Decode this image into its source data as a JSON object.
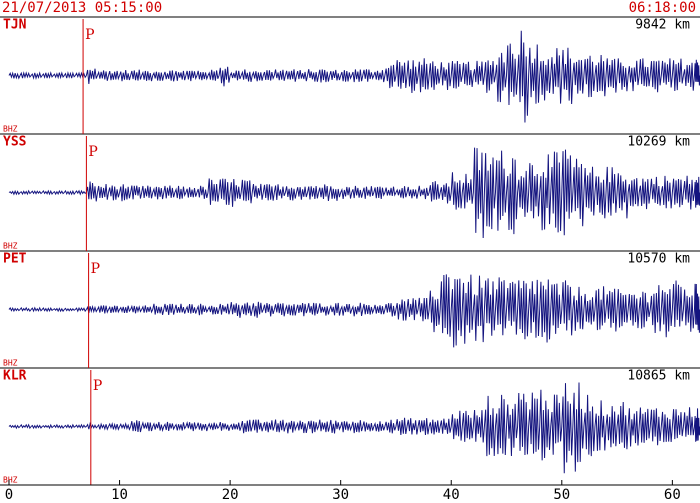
{
  "chart_data": {
    "type": "seismogram",
    "header_left": "21/07/2013 05:15:00",
    "header_right": "06:18:00",
    "x": [
      0,
      1,
      2,
      3,
      4,
      5,
      6,
      7,
      8,
      9,
      10,
      11,
      12,
      13,
      14,
      15,
      16,
      17,
      18,
      19,
      20,
      21,
      22,
      23,
      24,
      25,
      26,
      27,
      28,
      29,
      30,
      31,
      32,
      33,
      34,
      35,
      36,
      37,
      38,
      39,
      40,
      41,
      42,
      43,
      44,
      45,
      46,
      47,
      48,
      49,
      50,
      51,
      52,
      53,
      54,
      55,
      56,
      57,
      58,
      59,
      60,
      61,
      62
    ],
    "xlim": [
      0,
      62.5
    ],
    "xticks": [
      0,
      10,
      20,
      30,
      40,
      50,
      60
    ],
    "series": [
      {
        "name": "TJN",
        "distance": "9842 km",
        "component": "BHZ",
        "phase": "P",
        "p_arrival": 6.7,
        "color": "#14147f",
        "values": [
          0.05,
          0.05,
          0.05,
          0.05,
          0.05,
          0.05,
          0.05,
          0.15,
          0.1,
          0.1,
          0.1,
          0.1,
          0.1,
          0.1,
          0.1,
          0.1,
          0.1,
          0.1,
          0.1,
          0.2,
          0.1,
          0.11,
          0.1,
          0.11,
          0.12,
          0.11,
          0.1,
          0.11,
          0.12,
          0.1,
          0.11,
          0.12,
          0.12,
          0.12,
          0.25,
          0.3,
          0.3,
          0.3,
          0.3,
          0.25,
          0.25,
          0.25,
          0.25,
          0.3,
          0.5,
          0.7,
          0.85,
          0.6,
          0.5,
          0.5,
          0.5,
          0.4,
          0.4,
          0.4,
          0.3,
          0.3,
          0.3,
          0.3,
          0.3,
          0.3,
          0.3,
          0.3,
          0.3
        ]
      },
      {
        "name": "YSS",
        "distance": "10269 km",
        "component": "BHZ",
        "phase": "P",
        "p_arrival": 7.0,
        "color": "#14147f",
        "values": [
          0.03,
          0.03,
          0.03,
          0.03,
          0.03,
          0.03,
          0.03,
          0.2,
          0.15,
          0.15,
          0.15,
          0.12,
          0.12,
          0.12,
          0.12,
          0.12,
          0.12,
          0.12,
          0.25,
          0.25,
          0.25,
          0.25,
          0.15,
          0.15,
          0.15,
          0.15,
          0.15,
          0.15,
          0.15,
          0.15,
          0.12,
          0.12,
          0.12,
          0.12,
          0.12,
          0.12,
          0.12,
          0.12,
          0.2,
          0.2,
          0.35,
          0.35,
          0.8,
          0.75,
          0.75,
          0.75,
          0.6,
          0.6,
          0.7,
          0.7,
          0.85,
          0.6,
          0.45,
          0.45,
          0.45,
          0.45,
          0.3,
          0.3,
          0.3,
          0.3,
          0.3,
          0.3,
          0.3
        ]
      },
      {
        "name": "PET",
        "distance": "10570 km",
        "component": "BHZ",
        "phase": "P",
        "p_arrival": 7.2,
        "color": "#14147f",
        "values": [
          0.03,
          0.03,
          0.03,
          0.03,
          0.03,
          0.03,
          0.03,
          0.07,
          0.07,
          0.07,
          0.07,
          0.07,
          0.07,
          0.1,
          0.1,
          0.1,
          0.1,
          0.1,
          0.1,
          0.1,
          0.15,
          0.15,
          0.15,
          0.12,
          0.12,
          0.12,
          0.12,
          0.12,
          0.12,
          0.12,
          0.12,
          0.12,
          0.12,
          0.12,
          0.12,
          0.2,
          0.2,
          0.2,
          0.4,
          0.75,
          0.85,
          0.6,
          0.6,
          0.6,
          0.55,
          0.55,
          0.55,
          0.6,
          0.6,
          0.5,
          0.5,
          0.4,
          0.4,
          0.4,
          0.4,
          0.35,
          0.35,
          0.35,
          0.5,
          0.5,
          0.5,
          0.45,
          0.45
        ]
      },
      {
        "name": "KLR",
        "distance": "10865 km",
        "component": "BHZ",
        "phase": "P",
        "p_arrival": 7.4,
        "color": "#14147f",
        "values": [
          0.03,
          0.03,
          0.03,
          0.03,
          0.03,
          0.03,
          0.03,
          0.05,
          0.05,
          0.05,
          0.05,
          0.12,
          0.08,
          0.08,
          0.08,
          0.08,
          0.08,
          0.08,
          0.08,
          0.08,
          0.08,
          0.12,
          0.12,
          0.12,
          0.12,
          0.12,
          0.12,
          0.12,
          0.12,
          0.12,
          0.12,
          0.12,
          0.12,
          0.12,
          0.12,
          0.15,
          0.15,
          0.15,
          0.15,
          0.15,
          0.3,
          0.3,
          0.3,
          0.55,
          0.55,
          0.55,
          0.7,
          0.7,
          0.7,
          0.55,
          0.8,
          0.8,
          0.6,
          0.45,
          0.45,
          0.45,
          0.35,
          0.35,
          0.35,
          0.35,
          0.35,
          0.35,
          0.35
        ]
      }
    ]
  }
}
